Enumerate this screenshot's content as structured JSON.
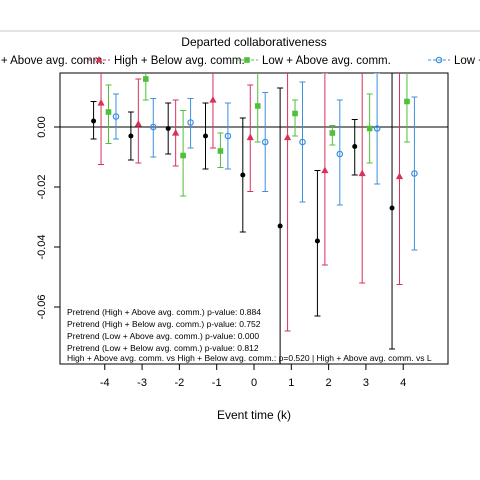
{
  "chart_data": {
    "type": "scatter",
    "subtype": "event-study coefficient plot with error bars",
    "xlabel": "Event time (k)",
    "ylabel": "",
    "xlim": [
      -5.2,
      5.2
    ],
    "ylim": [
      -0.079,
      0.018
    ],
    "x_ticks": [
      -4,
      -3,
      -2,
      -1,
      0,
      1,
      2,
      3,
      4
    ],
    "x_tick_labels": [
      "-4",
      "-3",
      "-2",
      "-1",
      "0",
      "1",
      "2",
      "3",
      "4"
    ],
    "y_ticks": [
      -0.06,
      -0.04,
      -0.02,
      0.0
    ],
    "y_tick_labels": [
      "-0.06",
      "-0.04",
      "-0.02",
      "0.00"
    ],
    "zero_line": true,
    "grid": false,
    "legend": {
      "title": "Departed collaborativeness",
      "position": "top",
      "entries": [
        "High + Above avg. comm.",
        "High + Below avg. comm.",
        "Low + Above avg. comm.",
        "Low + Below avg. comm."
      ]
    },
    "series": [
      {
        "name": "High + Above avg. comm.",
        "color": "#000000",
        "marker": "circle-filled",
        "offset": -0.3,
        "x": [
          -4,
          -3,
          -2,
          -1,
          0,
          1,
          2,
          3,
          4
        ],
        "y": [
          0.002,
          -0.003,
          -0.0005,
          -0.003,
          -0.016,
          -0.033,
          -0.038,
          -0.0065,
          -0.027
        ],
        "ci_low": [
          -0.004,
          -0.011,
          -0.009,
          -0.014,
          -0.035,
          -0.079,
          -0.063,
          -0.016,
          -0.074
        ],
        "ci_high": [
          0.0085,
          0.005,
          0.008,
          0.008,
          0.003,
          0.013,
          -0.0145,
          0.0025,
          0.02
        ]
      },
      {
        "name": "High + Below avg. comm.",
        "color": "#d9325a",
        "marker": "triangle-filled",
        "offset": -0.1,
        "x": [
          -4,
          -3,
          -2,
          -1,
          0,
          1,
          2,
          3,
          4
        ],
        "y": [
          0.008,
          0.001,
          -0.002,
          0.009,
          -0.0035,
          -0.0035,
          -0.0145,
          -0.0155,
          -0.0165
        ],
        "ci_low": [
          -0.0125,
          -0.012,
          -0.013,
          -0.007,
          -0.0215,
          -0.068,
          -0.046,
          -0.052,
          -0.0525
        ],
        "ci_high": [
          0.03,
          0.016,
          0.009,
          0.025,
          0.014,
          0.058,
          0.018,
          0.02,
          0.02
        ]
      },
      {
        "name": "Low + Above avg. comm.",
        "color": "#4fc03a",
        "marker": "square-filled",
        "offset": 0.1,
        "x": [
          -4,
          -3,
          -2,
          -1,
          0,
          1,
          2,
          3,
          4
        ],
        "y": [
          0.005,
          0.016,
          -0.0095,
          -0.008,
          0.007,
          0.0045,
          -0.002,
          -0.0005,
          0.0085
        ],
        "ci_low": [
          -0.0055,
          0.009,
          -0.023,
          -0.0135,
          -0.005,
          -0.003,
          -0.006,
          -0.012,
          -0.005
        ],
        "ci_high": [
          0.014,
          0.024,
          0.0055,
          -0.002,
          0.019,
          0.009,
          0.0005,
          0.011,
          0.022
        ]
      },
      {
        "name": "Low + Below avg. comm.",
        "color": "#3d8fe0",
        "marker": "circle-open",
        "offset": 0.3,
        "x": [
          -4,
          -3,
          -2,
          -1,
          0,
          1,
          2,
          3,
          4
        ],
        "y": [
          0.0035,
          0.0,
          0.0015,
          -0.003,
          -0.005,
          -0.005,
          -0.009,
          -0.0005,
          -0.0155
        ],
        "ci_low": [
          -0.004,
          -0.01,
          -0.007,
          -0.014,
          -0.0215,
          -0.025,
          -0.026,
          -0.019,
          -0.041
        ],
        "ci_high": [
          0.011,
          0.0095,
          0.0095,
          0.008,
          0.0115,
          0.015,
          0.009,
          0.018,
          0.01
        ]
      }
    ],
    "annotations": [
      "Pretrend (High + Above avg. comm.) p-value: 0.884",
      "Pretrend (High + Below avg. comm.) p-value: 0.752",
      "Pretrend (Low + Above avg. comm.) p-value: 0.000",
      "Pretrend (Low + Below avg. comm.) p-value: 0.812",
      "High + Above avg. comm. vs High + Below avg. comm.: p=0.520 | High + Above avg. comm. vs L"
    ]
  }
}
